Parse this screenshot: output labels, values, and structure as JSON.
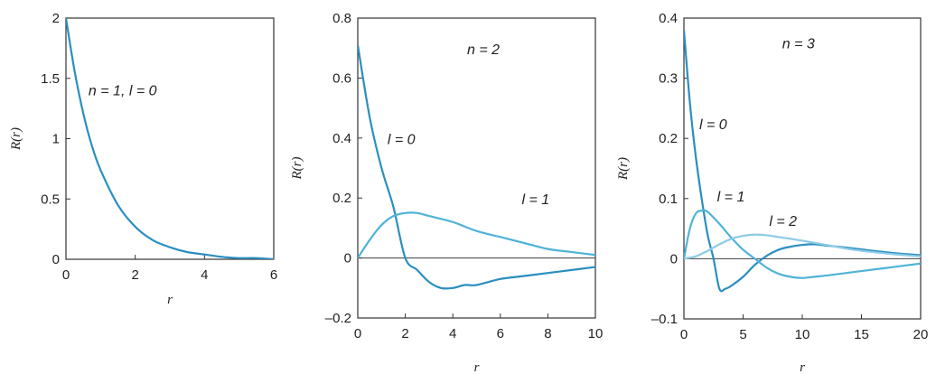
{
  "chart_data": [
    {
      "type": "line",
      "xlabel": "r",
      "ylabel": "R(r)",
      "xlim": [
        0,
        6
      ],
      "ylim": [
        0,
        2
      ],
      "xticks": [
        "0",
        "2",
        "4",
        "6"
      ],
      "yticks": [
        "0",
        "0.5",
        "1",
        "1.5",
        "2"
      ],
      "grid": false,
      "series": [
        {
          "color": "#2a8fc0",
          "x": [
            0,
            0.25,
            0.5,
            0.75,
            1,
            1.5,
            2,
            2.5,
            3,
            3.5,
            4,
            4.5,
            5,
            5.5,
            6
          ],
          "y": [
            2.0,
            1.56,
            1.21,
            0.94,
            0.74,
            0.45,
            0.27,
            0.16,
            0.1,
            0.06,
            0.04,
            0.02,
            0.01,
            0.01,
            0.0
          ]
        }
      ],
      "annotations": [
        {
          "text": "n = 1, l = 0",
          "x": 0.65,
          "y": 1.36
        }
      ]
    },
    {
      "type": "line",
      "xlabel": "r",
      "ylabel": "R(r)",
      "xlim": [
        0,
        10
      ],
      "ylim": [
        -0.2,
        0.8
      ],
      "xticks": [
        "0",
        "2",
        "4",
        "6",
        "8",
        "10"
      ],
      "yticks": [
        "–0.2",
        "0",
        "0.2",
        "0.4",
        "0.6",
        "0.8"
      ],
      "grid": false,
      "zero_line": true,
      "series": [
        {
          "label": "l = 0",
          "color": "#2a8fc0",
          "x": [
            0,
            0.5,
            1,
            1.5,
            2,
            2.5,
            3,
            3.5,
            4,
            4.5,
            5,
            6,
            7,
            8,
            9,
            10
          ],
          "y": [
            0.71,
            0.47,
            0.3,
            0.17,
            0.0,
            -0.04,
            -0.08,
            -0.1,
            -0.1,
            -0.09,
            -0.09,
            -0.07,
            -0.06,
            -0.05,
            -0.04,
            -0.03
          ]
        },
        {
          "label": "l = 1",
          "color": "#4fb3d6",
          "x": [
            0,
            0.5,
            1,
            1.5,
            2,
            2.5,
            3,
            4,
            5,
            6,
            7,
            8,
            9,
            10
          ],
          "y": [
            0.0,
            0.06,
            0.11,
            0.14,
            0.15,
            0.15,
            0.14,
            0.12,
            0.09,
            0.07,
            0.05,
            0.03,
            0.02,
            0.01
          ]
        }
      ],
      "annotations": [
        {
          "text": "n = 2",
          "x": 4.6,
          "y": 0.68
        },
        {
          "text": "l = 0",
          "x": 1.25,
          "y": 0.38
        },
        {
          "text": "l = 1",
          "x": 6.9,
          "y": 0.18
        }
      ]
    },
    {
      "type": "line",
      "xlabel": "r",
      "ylabel": "R(r)",
      "xlim": [
        0,
        20
      ],
      "ylim": [
        -0.1,
        0.4
      ],
      "xticks": [
        "0",
        "5",
        "10",
        "15",
        "20"
      ],
      "yticks": [
        "–0.1",
        "0",
        "0.1",
        "0.2",
        "0.3",
        "0.4"
      ],
      "grid": false,
      "zero_line": true,
      "series": [
        {
          "label": "l = 0",
          "color": "#2a8fc0",
          "x": [
            0,
            0.5,
            1,
            1.5,
            2,
            2.5,
            3,
            3.5,
            4,
            5,
            6,
            7,
            8,
            9,
            10,
            11,
            12,
            13,
            14,
            16,
            18,
            20
          ],
          "y": [
            0.38,
            0.26,
            0.17,
            0.1,
            0.04,
            0.0,
            -0.05,
            -0.05,
            -0.045,
            -0.03,
            -0.01,
            0.005,
            0.015,
            0.02,
            0.023,
            0.024,
            0.022,
            0.02,
            0.018,
            0.013,
            0.009,
            0.006
          ]
        },
        {
          "label": "l = 1",
          "color": "#4fb3d6",
          "x": [
            0,
            0.5,
            1,
            1.5,
            2,
            3,
            4,
            5,
            6,
            7,
            8,
            9,
            10,
            11,
            12,
            14,
            16,
            18,
            20
          ],
          "y": [
            0.0,
            0.05,
            0.075,
            0.08,
            0.078,
            0.058,
            0.035,
            0.015,
            0.0,
            -0.015,
            -0.025,
            -0.03,
            -0.032,
            -0.03,
            -0.028,
            -0.023,
            -0.018,
            -0.013,
            -0.008
          ]
        },
        {
          "label": "l = 2",
          "color": "#8ccbe6",
          "x": [
            0,
            1,
            2,
            3,
            4,
            5,
            6,
            7,
            8,
            10,
            12,
            14,
            16,
            18,
            20
          ],
          "y": [
            0.0,
            0.004,
            0.013,
            0.024,
            0.033,
            0.038,
            0.04,
            0.039,
            0.036,
            0.03,
            0.023,
            0.016,
            0.011,
            0.007,
            0.004
          ]
        }
      ],
      "annotations": [
        {
          "text": "n = 3",
          "x": 8.3,
          "y": 0.35
        },
        {
          "text": "l = 0",
          "x": 1.3,
          "y": 0.215
        },
        {
          "text": "l = 1",
          "x": 2.8,
          "y": 0.095
        },
        {
          "text": "l = 2",
          "x": 7.2,
          "y": 0.055
        }
      ]
    }
  ]
}
